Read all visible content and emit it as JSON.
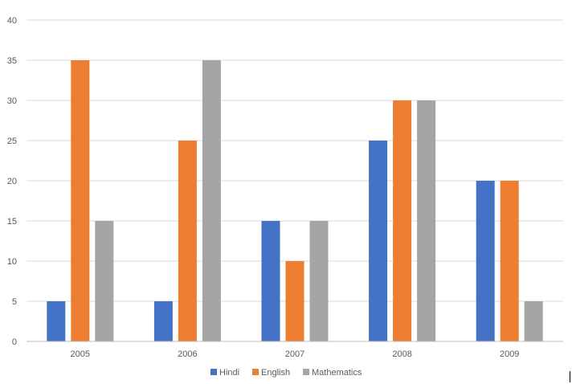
{
  "chart_data": {
    "type": "bar",
    "title": "",
    "xlabel": "",
    "ylabel": "",
    "categories": [
      "2005",
      "2006",
      "2007",
      "2008",
      "2009"
    ],
    "series": [
      {
        "name": "Hindi",
        "color": "#4472c4",
        "values": [
          5,
          5,
          15,
          25,
          20
        ]
      },
      {
        "name": "English",
        "color": "#ed7d31",
        "values": [
          35,
          25,
          10,
          30,
          20
        ]
      },
      {
        "name": "Mathematics",
        "color": "#a5a5a5",
        "values": [
          15,
          35,
          15,
          30,
          5
        ]
      }
    ],
    "ylim": [
      0,
      40
    ],
    "yticks": [
      0,
      5,
      10,
      15,
      20,
      25,
      30,
      35,
      40
    ],
    "grid": true,
    "legend_position": "bottom"
  }
}
